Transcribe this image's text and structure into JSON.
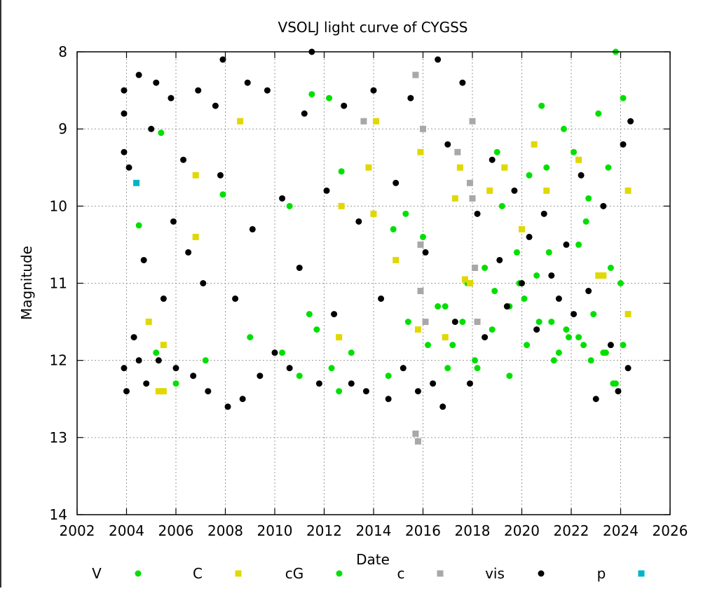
{
  "chart_data": {
    "type": "scatter",
    "title": "VSOLJ light curve of CYGSS",
    "xlabel": "Date",
    "ylabel": "Magnitude",
    "xlim": [
      2002,
      2026
    ],
    "ylim": [
      8,
      14
    ],
    "y_inverted": true,
    "x_ticks": [
      "2002",
      "2004",
      "2006",
      "2008",
      "2010",
      "2012",
      "2014",
      "2016",
      "2018",
      "2020",
      "2022",
      "2024",
      "2026"
    ],
    "y_ticks": [
      "8",
      "9",
      "10",
      "11",
      "12",
      "13",
      "14"
    ],
    "grid": true,
    "legend_position": "bottom",
    "series": [
      {
        "name": "V",
        "marker": "circle",
        "color": "#00e000",
        "points": [
          [
            2005.4,
            9.05
          ],
          [
            2004.5,
            10.25
          ],
          [
            2007.9,
            9.85
          ],
          [
            2010.6,
            10.0
          ],
          [
            2011.5,
            8.55
          ],
          [
            2012.7,
            9.55
          ],
          [
            2014.8,
            10.3
          ],
          [
            2015.3,
            10.1
          ],
          [
            2016.9,
            11.3
          ],
          [
            2017.2,
            11.8
          ],
          [
            2018.5,
            10.8
          ],
          [
            2018.9,
            11.1
          ],
          [
            2019.2,
            10.0
          ],
          [
            2019.5,
            11.3
          ],
          [
            2019.8,
            10.6
          ],
          [
            2020.1,
            11.2
          ],
          [
            2020.3,
            9.6
          ],
          [
            2020.6,
            10.9
          ],
          [
            2020.8,
            8.7
          ],
          [
            2021.0,
            9.5
          ],
          [
            2021.2,
            11.5
          ],
          [
            2021.5,
            11.9
          ],
          [
            2021.7,
            9.0
          ],
          [
            2021.9,
            11.7
          ],
          [
            2022.1,
            9.3
          ],
          [
            2022.3,
            10.5
          ],
          [
            2022.5,
            11.8
          ],
          [
            2022.7,
            9.9
          ],
          [
            2022.9,
            11.4
          ],
          [
            2023.1,
            8.8
          ],
          [
            2023.3,
            11.9
          ],
          [
            2023.5,
            9.5
          ],
          [
            2023.7,
            12.3
          ],
          [
            2023.8,
            8.0
          ],
          [
            2024.0,
            11.0
          ],
          [
            2024.1,
            8.6
          ],
          [
            2024.3,
            11.4
          ],
          [
            2017.8,
            11.0
          ],
          [
            2018.2,
            12.1
          ],
          [
            2019.0,
            9.3
          ]
        ]
      },
      {
        "name": "C",
        "marker": "square",
        "color": "#e0d800",
        "points": [
          [
            2005.3,
            12.4
          ],
          [
            2005.5,
            12.4
          ],
          [
            2004.9,
            11.5
          ],
          [
            2005.5,
            11.8
          ],
          [
            2006.8,
            9.6
          ],
          [
            2006.8,
            10.4
          ],
          [
            2008.6,
            8.9
          ],
          [
            2012.6,
            11.7
          ],
          [
            2012.7,
            10.0
          ],
          [
            2014.0,
            10.1
          ],
          [
            2013.8,
            9.5
          ],
          [
            2014.9,
            10.7
          ],
          [
            2015.9,
            9.3
          ],
          [
            2016.9,
            11.7
          ],
          [
            2017.3,
            9.9
          ],
          [
            2017.5,
            9.5
          ],
          [
            2017.7,
            10.95
          ],
          [
            2017.9,
            11.0
          ],
          [
            2019.3,
            9.5
          ],
          [
            2020.0,
            10.3
          ],
          [
            2020.5,
            9.2
          ],
          [
            2021.0,
            9.8
          ],
          [
            2022.3,
            9.4
          ],
          [
            2023.1,
            10.9
          ],
          [
            2023.3,
            10.9
          ],
          [
            2024.3,
            9.8
          ],
          [
            2024.3,
            11.4
          ],
          [
            2014.1,
            8.9
          ],
          [
            2015.8,
            11.6
          ],
          [
            2018.7,
            9.8
          ]
        ]
      },
      {
        "name": "cG",
        "marker": "circle",
        "color": "#00e000",
        "points": [
          [
            2005.2,
            11.9
          ],
          [
            2006.0,
            12.3
          ],
          [
            2007.2,
            12.0
          ],
          [
            2009.0,
            11.7
          ],
          [
            2010.3,
            11.9
          ],
          [
            2011.0,
            12.2
          ],
          [
            2011.7,
            11.6
          ],
          [
            2012.3,
            12.1
          ],
          [
            2012.6,
            12.4
          ],
          [
            2013.1,
            11.9
          ],
          [
            2014.6,
            12.2
          ],
          [
            2015.4,
            11.5
          ],
          [
            2016.2,
            11.8
          ],
          [
            2016.6,
            11.3
          ],
          [
            2017.0,
            12.1
          ],
          [
            2017.6,
            11.5
          ],
          [
            2018.1,
            12.0
          ],
          [
            2018.8,
            11.6
          ],
          [
            2019.5,
            12.2
          ],
          [
            2020.2,
            11.8
          ],
          [
            2020.7,
            11.5
          ],
          [
            2021.3,
            12.0
          ],
          [
            2021.8,
            11.6
          ],
          [
            2022.3,
            11.7
          ],
          [
            2022.8,
            12.0
          ],
          [
            2023.4,
            11.9
          ],
          [
            2023.8,
            12.3
          ],
          [
            2024.1,
            11.8
          ],
          [
            2011.4,
            11.4
          ],
          [
            2016.0,
            10.4
          ],
          [
            2019.9,
            11.0
          ],
          [
            2021.1,
            10.6
          ],
          [
            2022.6,
            10.2
          ],
          [
            2023.6,
            10.8
          ],
          [
            2012.2,
            8.6
          ]
        ]
      },
      {
        "name": "c",
        "marker": "square",
        "color": "#a8a8a8",
        "points": [
          [
            2015.7,
            8.3
          ],
          [
            2015.7,
            12.95
          ],
          [
            2015.8,
            13.05
          ],
          [
            2013.6,
            8.9
          ],
          [
            2016.0,
            9.0
          ],
          [
            2018.0,
            9.9
          ],
          [
            2018.1,
            10.8
          ],
          [
            2017.9,
            9.7
          ],
          [
            2018.2,
            11.5
          ],
          [
            2016.1,
            11.5
          ],
          [
            2015.9,
            10.5
          ],
          [
            2017.4,
            9.3
          ],
          [
            2015.9,
            11.1
          ],
          [
            2018.0,
            8.9
          ]
        ]
      },
      {
        "name": "vis",
        "marker": "circle",
        "color": "#000000",
        "points": [
          [
            2003.9,
            8.5
          ],
          [
            2003.9,
            8.8
          ],
          [
            2003.9,
            9.3
          ],
          [
            2003.9,
            12.1
          ],
          [
            2004.0,
            12.4
          ],
          [
            2004.1,
            9.5
          ],
          [
            2004.3,
            11.7
          ],
          [
            2004.5,
            8.3
          ],
          [
            2004.5,
            12.0
          ],
          [
            2004.7,
            10.7
          ],
          [
            2004.8,
            12.3
          ],
          [
            2005.0,
            9.0
          ],
          [
            2005.2,
            8.4
          ],
          [
            2005.3,
            12.0
          ],
          [
            2005.5,
            11.2
          ],
          [
            2005.8,
            8.6
          ],
          [
            2005.9,
            10.2
          ],
          [
            2006.0,
            12.1
          ],
          [
            2006.3,
            9.4
          ],
          [
            2006.5,
            10.6
          ],
          [
            2006.7,
            12.2
          ],
          [
            2006.9,
            8.5
          ],
          [
            2007.1,
            11.0
          ],
          [
            2007.3,
            12.4
          ],
          [
            2007.6,
            8.7
          ],
          [
            2007.8,
            9.6
          ],
          [
            2007.9,
            8.1
          ],
          [
            2008.1,
            12.6
          ],
          [
            2008.4,
            11.2
          ],
          [
            2008.7,
            12.5
          ],
          [
            2008.9,
            8.4
          ],
          [
            2009.1,
            10.3
          ],
          [
            2009.4,
            12.2
          ],
          [
            2009.7,
            8.5
          ],
          [
            2010.0,
            11.9
          ],
          [
            2010.3,
            9.9
          ],
          [
            2010.6,
            12.1
          ],
          [
            2011.0,
            10.8
          ],
          [
            2011.2,
            8.8
          ],
          [
            2011.5,
            8.0
          ],
          [
            2011.8,
            12.3
          ],
          [
            2012.1,
            9.8
          ],
          [
            2012.4,
            11.4
          ],
          [
            2012.8,
            8.7
          ],
          [
            2013.1,
            12.3
          ],
          [
            2013.4,
            10.2
          ],
          [
            2013.7,
            12.4
          ],
          [
            2014.0,
            8.5
          ],
          [
            2014.3,
            11.2
          ],
          [
            2014.6,
            12.5
          ],
          [
            2014.9,
            9.7
          ],
          [
            2015.2,
            12.1
          ],
          [
            2015.5,
            8.6
          ],
          [
            2015.8,
            12.4
          ],
          [
            2016.1,
            10.6
          ],
          [
            2016.4,
            12.3
          ],
          [
            2016.6,
            8.1
          ],
          [
            2016.8,
            12.6
          ],
          [
            2017.0,
            9.2
          ],
          [
            2017.3,
            11.5
          ],
          [
            2017.6,
            8.4
          ],
          [
            2017.9,
            12.3
          ],
          [
            2018.2,
            10.1
          ],
          [
            2018.5,
            11.7
          ],
          [
            2018.8,
            9.4
          ],
          [
            2019.1,
            10.7
          ],
          [
            2019.4,
            11.3
          ],
          [
            2019.7,
            9.8
          ],
          [
            2020.0,
            11.0
          ],
          [
            2020.3,
            10.4
          ],
          [
            2020.6,
            11.6
          ],
          [
            2020.9,
            10.1
          ],
          [
            2021.2,
            10.9
          ],
          [
            2021.5,
            11.2
          ],
          [
            2021.8,
            10.5
          ],
          [
            2022.1,
            11.4
          ],
          [
            2022.4,
            9.6
          ],
          [
            2022.7,
            11.1
          ],
          [
            2023.0,
            12.5
          ],
          [
            2023.3,
            10.0
          ],
          [
            2023.6,
            11.8
          ],
          [
            2023.9,
            12.4
          ],
          [
            2024.1,
            9.2
          ],
          [
            2024.3,
            12.1
          ],
          [
            2024.4,
            8.9
          ]
        ]
      },
      {
        "name": "p",
        "marker": "square",
        "color": "#00b4c8",
        "points": [
          [
            2004.4,
            9.7
          ]
        ]
      }
    ]
  }
}
